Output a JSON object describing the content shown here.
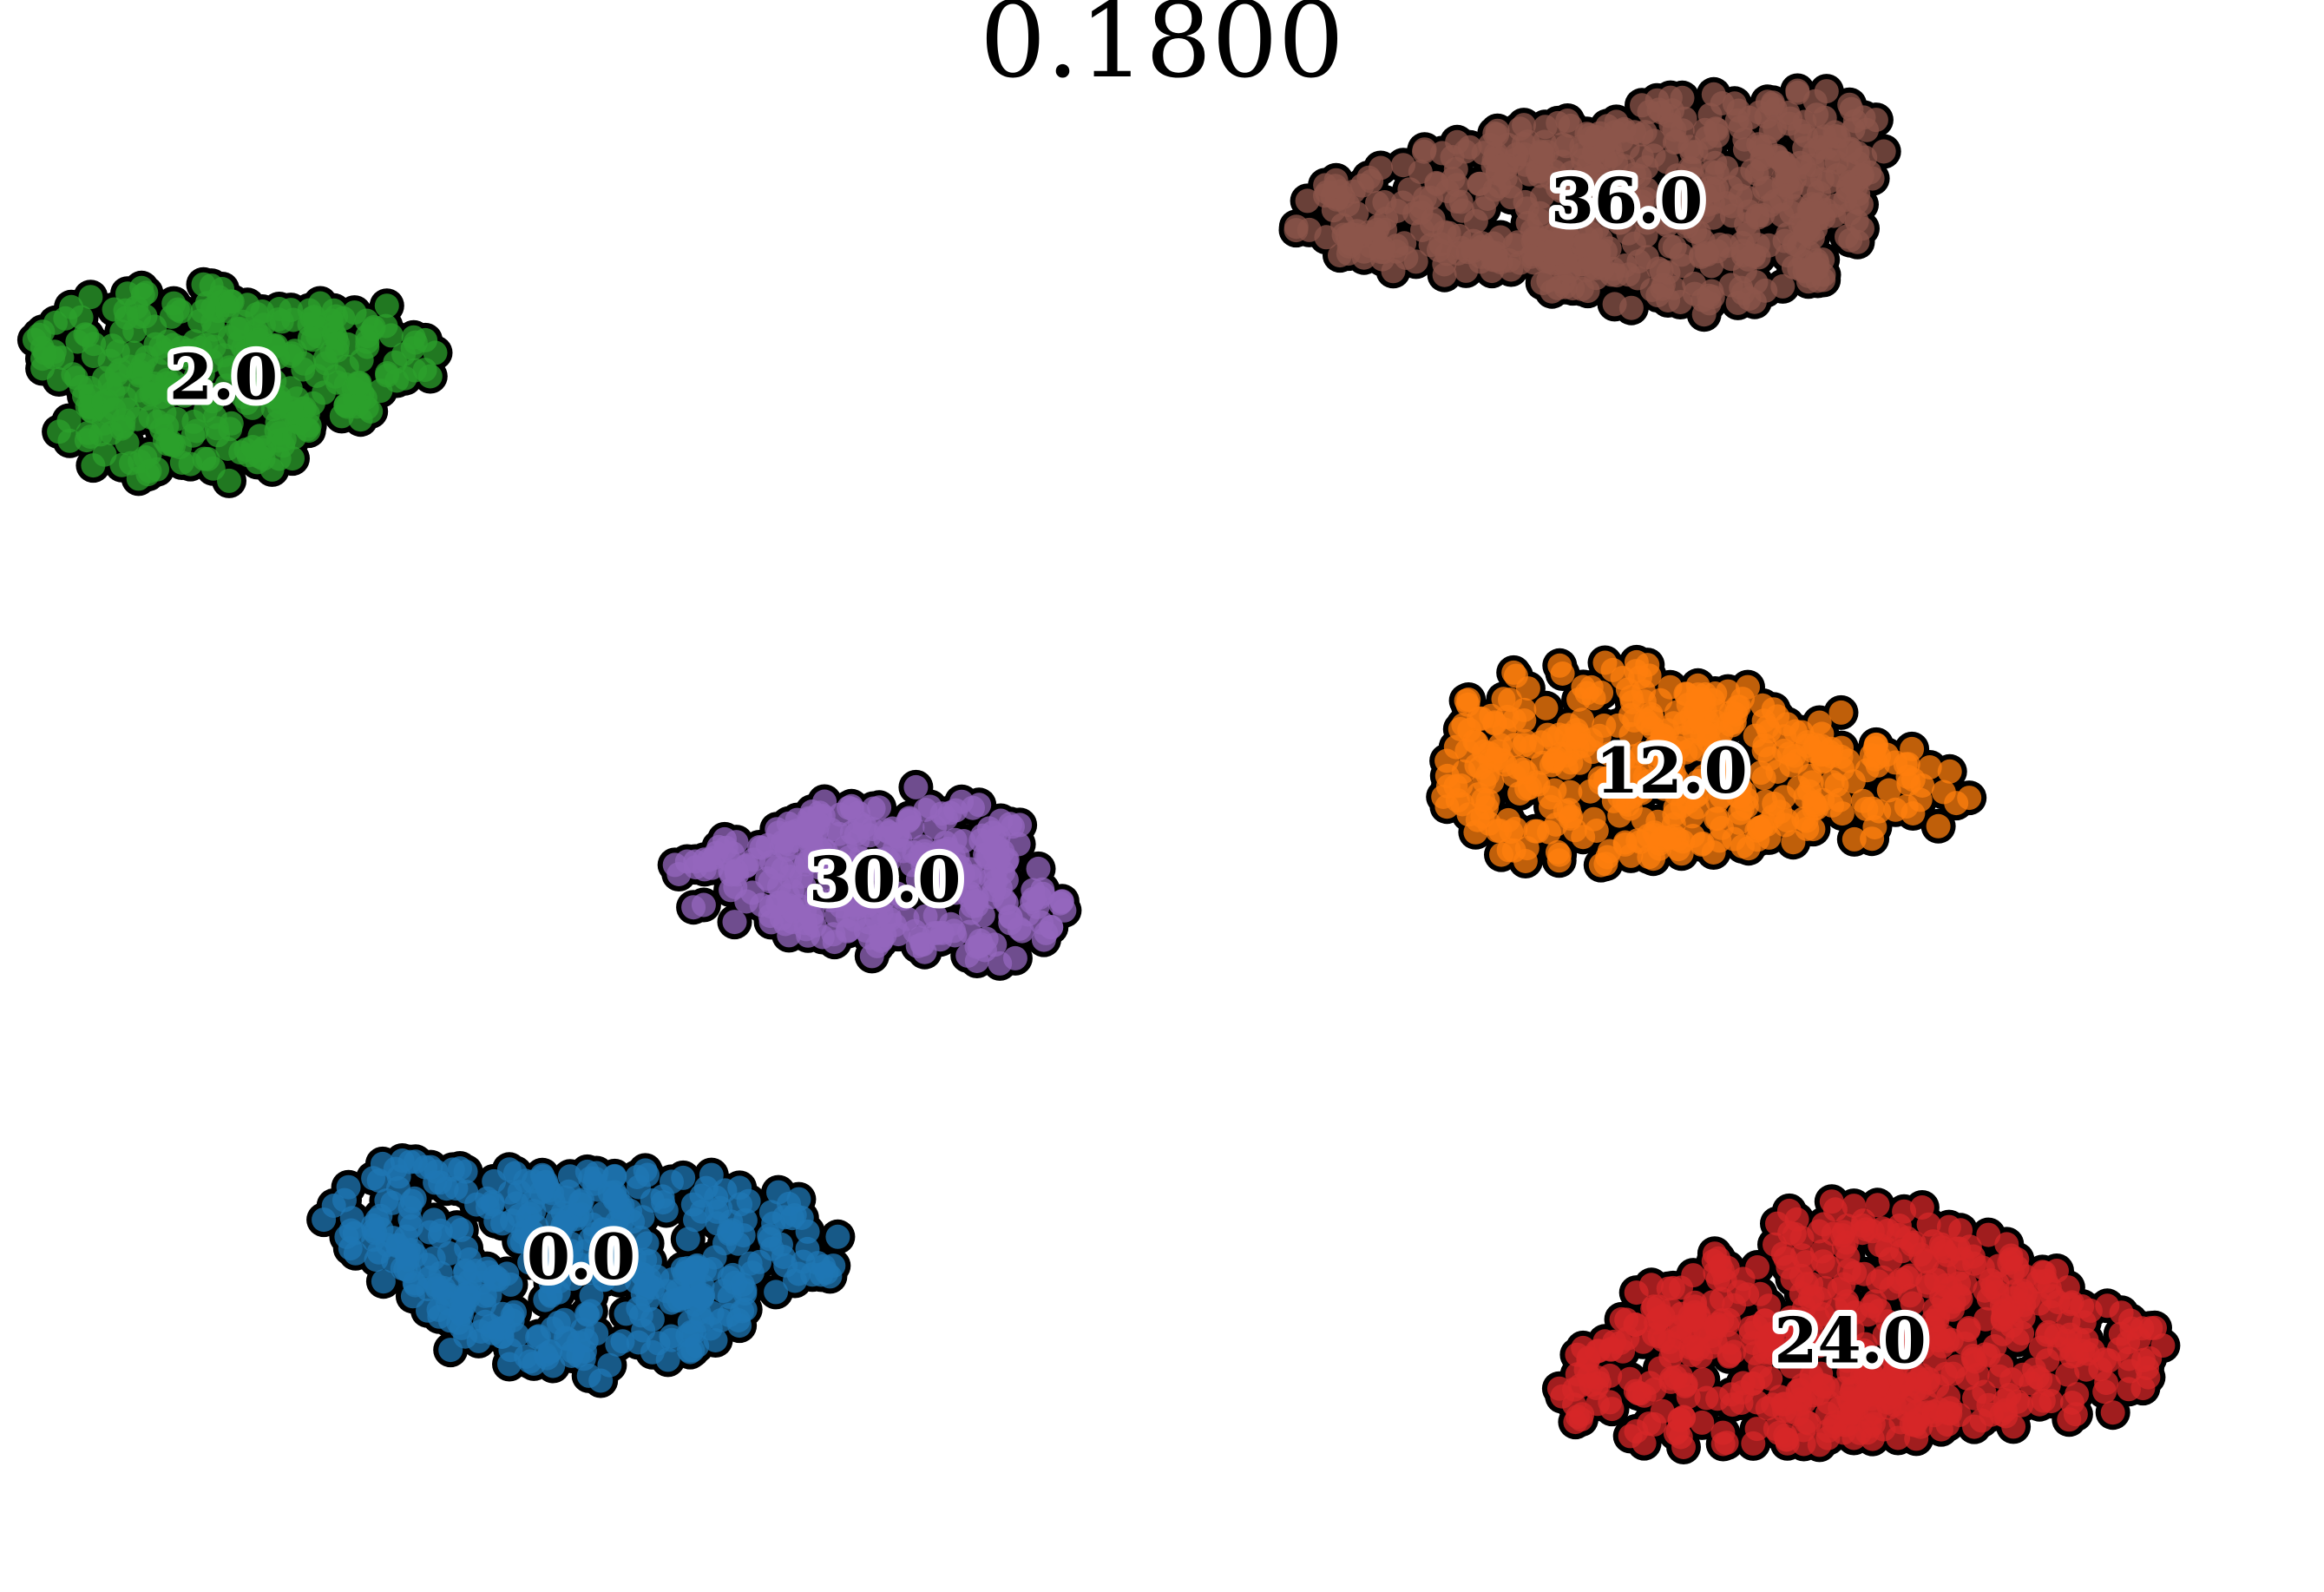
{
  "chart_data": {
    "type": "scatter",
    "title": "0.1800",
    "axes_visible": false,
    "grid": false,
    "point_style": "filled markers with black outline",
    "clusters": [
      {
        "label": "0.0",
        "color": "#1f77b4",
        "center": [
          -6.5,
          -5.5
        ],
        "spread": [
          3.0,
          1.3
        ],
        "points": 430
      },
      {
        "label": "2.0",
        "color": "#2ca02c",
        "center": [
          -10.5,
          5.0
        ],
        "spread": [
          2.4,
          1.2
        ],
        "points": 330
      },
      {
        "label": "12.0",
        "color": "#ff7f0e",
        "center": [
          5.7,
          0.3
        ],
        "spread": [
          3.2,
          1.2
        ],
        "points": 430
      },
      {
        "label": "24.0",
        "color": "#d62728",
        "center": [
          7.7,
          -6.5
        ],
        "spread": [
          3.5,
          1.5
        ],
        "points": 600
      },
      {
        "label": "30.0",
        "color": "#9467bd",
        "center": [
          -3.1,
          -1.0
        ],
        "spread": [
          2.3,
          1.0
        ],
        "points": 330
      },
      {
        "label": "36.0",
        "color": "#8c564b",
        "center": [
          5.2,
          7.1
        ],
        "spread": [
          3.5,
          1.3
        ],
        "points": 600
      }
    ]
  }
}
